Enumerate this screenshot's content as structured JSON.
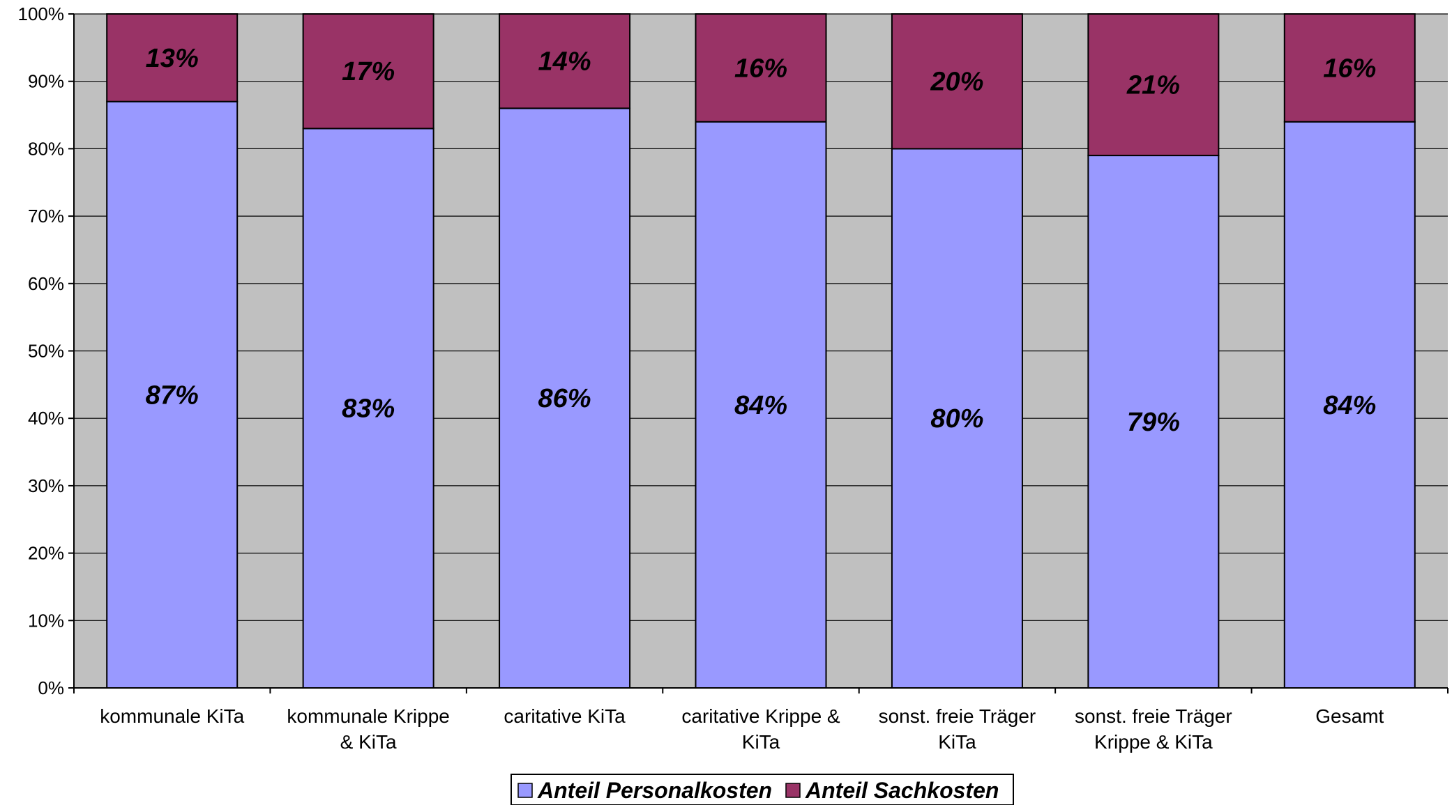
{
  "chart_data": {
    "type": "bar",
    "stacked": true,
    "percent_stacked": true,
    "categories": [
      [
        "kommunale KiTa"
      ],
      [
        "kommunale Krippe",
        "& KiTa"
      ],
      [
        "caritative KiTa"
      ],
      [
        "caritative Krippe &",
        "KiTa"
      ],
      [
        "sonst. freie Träger",
        "KiTa"
      ],
      [
        "sonst. freie Träger",
        "Krippe & KiTa"
      ],
      [
        "Gesamt"
      ]
    ],
    "series": [
      {
        "name": "Anteil Personalkosten",
        "color": "#9999ff",
        "values": [
          87,
          83,
          86,
          84,
          80,
          79,
          84
        ],
        "labels": [
          "87%",
          "83%",
          "86%",
          "84%",
          "80%",
          "79%",
          "84%"
        ]
      },
      {
        "name": "Anteil Sachkosten",
        "color": "#993366",
        "values": [
          13,
          17,
          14,
          16,
          20,
          21,
          16
        ],
        "labels": [
          "13%",
          "17%",
          "14%",
          "16%",
          "20%",
          "21%",
          "16%"
        ]
      }
    ],
    "y_ticks": [
      "0%",
      "10%",
      "20%",
      "30%",
      "40%",
      "50%",
      "60%",
      "70%",
      "80%",
      "90%",
      "100%"
    ],
    "ylim": [
      0,
      100
    ],
    "plot_background": "#c0c0c0",
    "grid": true,
    "legend_position": "bottom"
  }
}
